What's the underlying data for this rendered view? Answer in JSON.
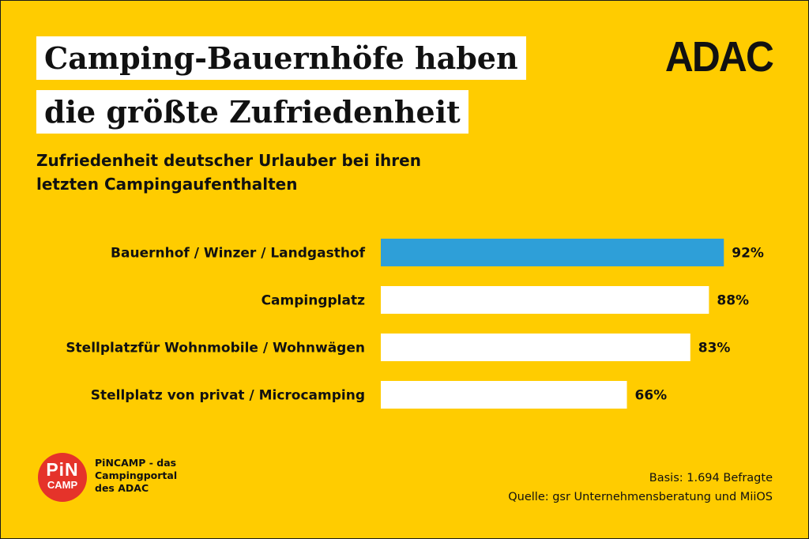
{
  "title": {
    "line1": "Camping-Bauernhöfe haben",
    "line2": "die größte Zufriedenheit"
  },
  "logo": "ADAC",
  "subtitle": {
    "line1": "Zufriedenheit deutscher Urlauber bei ihren",
    "line2": "letzten Campingaufenthalten"
  },
  "chart_data": {
    "type": "bar",
    "orientation": "horizontal",
    "categories": [
      "Bauernhof / Winzer / Landgasthof",
      "Campingplatz",
      "Stellplatzfür Wohnmobile / Wohnwägen",
      "Stellplatz von privat / Microcamping"
    ],
    "values": [
      92,
      88,
      83,
      66
    ],
    "value_labels": [
      "92%",
      "88%",
      "83%",
      "66%"
    ],
    "unit": "%",
    "xlim": [
      0,
      100
    ],
    "grid": false,
    "legend": "none",
    "colors": {
      "highlight": "#2E9FD8",
      "default": "#FFFFFF",
      "background": "#FFCC00"
    },
    "highlight_index": 0
  },
  "branding": {
    "badge_line1": "PiN",
    "badge_line2": "CAMP",
    "badge_color": "#E5332A",
    "text": "PiNCAMP - das Campingportal des ADAC"
  },
  "source": {
    "basis": "Basis: 1.694 Befragte",
    "quelle": "Quelle: gsr Unternehmensberatung und MiiOS"
  }
}
